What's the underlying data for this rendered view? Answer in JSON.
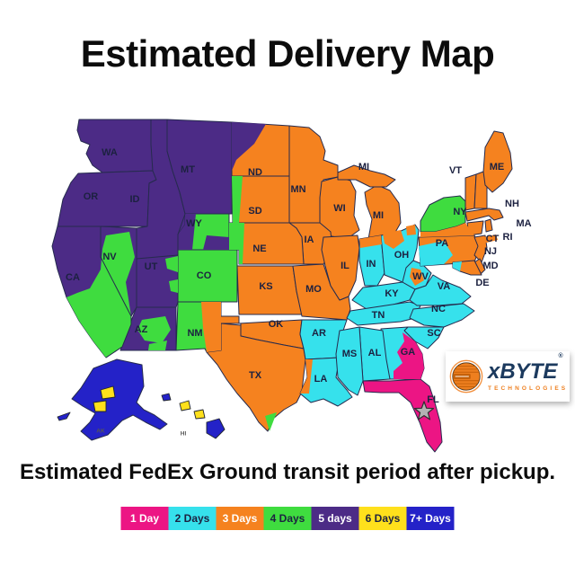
{
  "title": "Estimated Delivery Map",
  "caption": "Estimated FedEx Ground transit period after pickup.",
  "legend": {
    "items": [
      {
        "label": "1 Day",
        "color": "#ec1584",
        "text_color": "#ffffff"
      },
      {
        "label": "2 Days",
        "color": "#36e1ec",
        "text_color": "#1c2140"
      },
      {
        "label": "3 Days",
        "color": "#f5821f",
        "text_color": "#ffffff"
      },
      {
        "label": "4 Days",
        "color": "#3fdc3f",
        "text_color": "#1c2140"
      },
      {
        "label": "5 days",
        "color": "#4c2b86",
        "text_color": "#ffffff"
      },
      {
        "label": "6 Days",
        "color": "#ffe01c",
        "text_color": "#1c2140"
      },
      {
        "label": "7+ Days",
        "color": "#2422c8",
        "text_color": "#ffffff"
      }
    ]
  },
  "logo": {
    "brand": "xBYTE",
    "registered_mark": "®",
    "subtitle": "TECHNOLOGIES",
    "brand_color": "#1c3a5e",
    "subtitle_color": "#ee7f1f",
    "globe_color": "#ee7f1f"
  },
  "map": {
    "border_color": "#262b4e",
    "label_color": "#1c2140",
    "origin": {
      "state": "FL",
      "marker": "star",
      "marker_color": "#b3b3b3"
    },
    "states": [
      {
        "abbr": "WA",
        "days": 5
      },
      {
        "abbr": "OR",
        "days": 5
      },
      {
        "abbr": "ID",
        "days": 5
      },
      {
        "abbr": "MT",
        "days": 5
      },
      {
        "abbr": "WY",
        "days": 4
      },
      {
        "abbr": "NV",
        "days": 5
      },
      {
        "abbr": "UT",
        "days": 5
      },
      {
        "abbr": "CA",
        "days": 5
      },
      {
        "abbr": "AZ",
        "days": 5
      },
      {
        "abbr": "NM",
        "days": 4
      },
      {
        "abbr": "CO",
        "days": 4
      },
      {
        "abbr": "ND",
        "days": 3
      },
      {
        "abbr": "SD",
        "days": 3
      },
      {
        "abbr": "NE",
        "days": 3
      },
      {
        "abbr": "KS",
        "days": 3
      },
      {
        "abbr": "OK",
        "days": 3
      },
      {
        "abbr": "TX",
        "days": 3
      },
      {
        "abbr": "MN",
        "days": 3
      },
      {
        "abbr": "IA",
        "days": 3
      },
      {
        "abbr": "MO",
        "days": 3
      },
      {
        "abbr": "WI",
        "days": 3
      },
      {
        "abbr": "IL",
        "days": 3
      },
      {
        "abbr": "MI",
        "days": 3
      },
      {
        "abbr": "IN",
        "days": 2
      },
      {
        "abbr": "OH",
        "days": 2
      },
      {
        "abbr": "KY",
        "days": 2
      },
      {
        "abbr": "TN",
        "days": 2
      },
      {
        "abbr": "WV",
        "days": 2
      },
      {
        "abbr": "VA",
        "days": 2
      },
      {
        "abbr": "NC",
        "days": 2
      },
      {
        "abbr": "SC",
        "days": 2
      },
      {
        "abbr": "GA",
        "days": 2
      },
      {
        "abbr": "AL",
        "days": 2
      },
      {
        "abbr": "MS",
        "days": 2
      },
      {
        "abbr": "AR",
        "days": 2
      },
      {
        "abbr": "LA",
        "days": 2
      },
      {
        "abbr": "FL",
        "days": 1,
        "label_color": "#f5821f"
      },
      {
        "abbr": "NY",
        "days": 4
      },
      {
        "abbr": "PA",
        "days": 3
      },
      {
        "abbr": "NJ",
        "days": 3
      },
      {
        "abbr": "DE",
        "days": 3
      },
      {
        "abbr": "MD",
        "days": 3
      },
      {
        "abbr": "CT",
        "days": 3
      },
      {
        "abbr": "RI",
        "days": 3
      },
      {
        "abbr": "MA",
        "days": 3
      },
      {
        "abbr": "VT",
        "days": 3
      },
      {
        "abbr": "NH",
        "days": 3
      },
      {
        "abbr": "ME",
        "days": 3
      },
      {
        "abbr": "AK",
        "days": 7
      },
      {
        "abbr": "HI",
        "days": 7
      }
    ],
    "overlays": [
      {
        "id": "nd-northwest",
        "days": 5
      },
      {
        "id": "sd-west",
        "days": 4
      },
      {
        "id": "ne-west",
        "days": 4
      },
      {
        "id": "wy-west",
        "days": 5
      },
      {
        "id": "wy-southeast",
        "days": 5
      },
      {
        "id": "ut-east-1",
        "days": 4
      },
      {
        "id": "ut-east-2",
        "days": 4
      },
      {
        "id": "nv-ca-green",
        "days": 4
      },
      {
        "id": "az-central",
        "days": 4
      },
      {
        "id": "az-south",
        "days": 4
      },
      {
        "id": "nm-east",
        "days": 3
      },
      {
        "id": "tx-south-tip",
        "days": 4
      },
      {
        "id": "mi-upper",
        "days": 3
      },
      {
        "id": "in-north",
        "days": 3
      },
      {
        "id": "oh-north-1",
        "days": 3
      },
      {
        "id": "oh-north-2",
        "days": 3
      },
      {
        "id": "wv-central",
        "days": 3
      },
      {
        "id": "pa-west",
        "days": 2
      },
      {
        "id": "ny-south",
        "days": 3
      },
      {
        "id": "long-island",
        "days": 3
      },
      {
        "id": "md-west",
        "days": 2
      },
      {
        "id": "la-west",
        "days": 3
      },
      {
        "id": "ga-southeast",
        "days": 1
      },
      {
        "id": "ak-aleutians",
        "days": 7
      },
      {
        "id": "ak-yellow-1",
        "days": 6
      },
      {
        "id": "ak-yellow-2",
        "days": 6
      },
      {
        "id": "hi-island-1",
        "days": 7
      },
      {
        "id": "hi-island-2",
        "days": 6
      },
      {
        "id": "hi-island-3",
        "days": 6
      }
    ]
  }
}
